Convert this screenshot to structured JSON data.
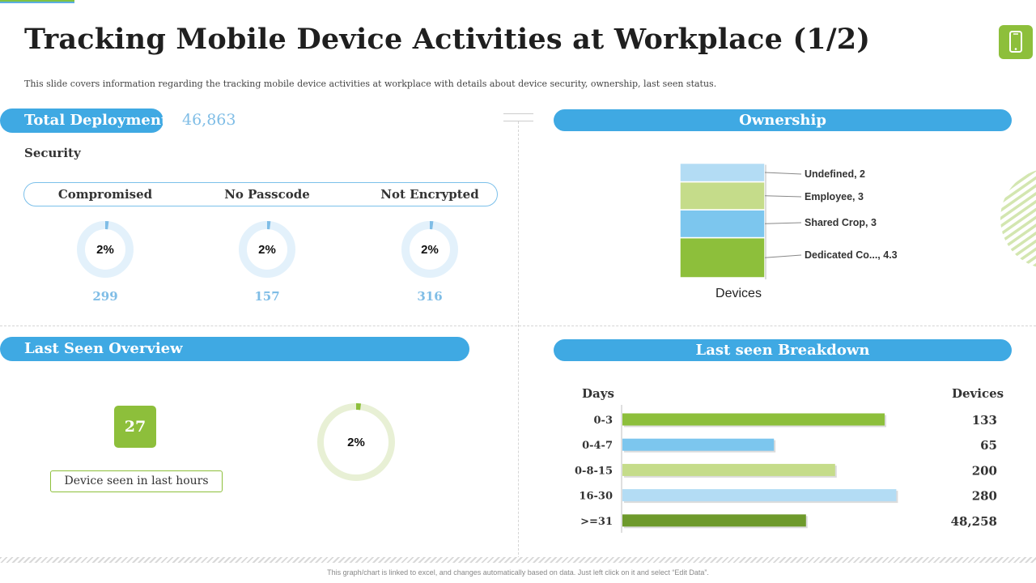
{
  "title": "Tracking Mobile Device Activities at Workplace (1/2)",
  "subtitle": "This slide covers information regarding the tracking mobile device activities at workplace with details about device security, ownership, last seen status.",
  "total_deployment": {
    "label": "Total Deployment",
    "value": "46,863"
  },
  "security": {
    "heading": "Security",
    "items": [
      {
        "label": "Compromised",
        "percent": "2%",
        "count": "299"
      },
      {
        "label": "No Passcode",
        "percent": "2%",
        "count": "157"
      },
      {
        "label": "Not Encrypted",
        "percent": "2%",
        "count": "316"
      }
    ]
  },
  "ownership": {
    "heading": "Ownership"
  },
  "last_seen_overview": {
    "heading": "Last Seen Overview",
    "count": "27",
    "caption": "Device seen in last hours",
    "percent": "2%"
  },
  "last_seen_breakdown": {
    "heading": "Last seen Breakdown",
    "col_days": "Days",
    "col_devices": "Devices"
  },
  "footer": "This graph/chart is linked to excel, and changes automatically based on data. Just left click on it and select “Edit Data”.",
  "icons": {
    "device": "mobile-phone-icon"
  },
  "colors": {
    "accent_blue": "#3fa9e3",
    "light_blue": "#7fbde6",
    "green": "#8dbf3b",
    "light_green": "#c5dc8a",
    "dark_green": "#6e9a2c",
    "pale_blue": "#b3dcf4"
  },
  "chart_data": [
    {
      "type": "pie",
      "title": "Compromised",
      "values": [
        2,
        98
      ],
      "label": "2%"
    },
    {
      "type": "pie",
      "title": "No Passcode",
      "values": [
        2,
        98
      ],
      "label": "2%"
    },
    {
      "type": "pie",
      "title": "Not Encrypted",
      "values": [
        2,
        98
      ],
      "label": "2%"
    },
    {
      "type": "bar",
      "title": "Ownership",
      "stacked": true,
      "categories": [
        "Devices"
      ],
      "series": [
        {
          "name": "Dedicated Co...",
          "values": [
            4.3
          ],
          "label": "Dedicated Co..., 4.3"
        },
        {
          "name": "Shared Crop",
          "values": [
            3
          ],
          "label": "Shared Crop, 3"
        },
        {
          "name": "Employee",
          "values": [
            3
          ],
          "label": "Employee, 3"
        },
        {
          "name": "Undefined",
          "values": [
            2
          ],
          "label": "Undefined, 2"
        }
      ],
      "xlabel": "Devices"
    },
    {
      "type": "pie",
      "title": "Last Seen Overview",
      "values": [
        2,
        98
      ],
      "label": "2%"
    },
    {
      "type": "bar",
      "orientation": "horizontal",
      "title": "Last seen Breakdown",
      "categories": [
        "0-3",
        "0-4-7",
        "0-8-15",
        "16-30",
        ">=31"
      ],
      "values": [
        133,
        65,
        200,
        280,
        48258
      ],
      "value_labels": [
        "133",
        "65",
        "200",
        "280",
        "48,258"
      ],
      "bar_lengths_relative": [
        0.9,
        0.52,
        0.73,
        0.94,
        0.63
      ]
    }
  ]
}
